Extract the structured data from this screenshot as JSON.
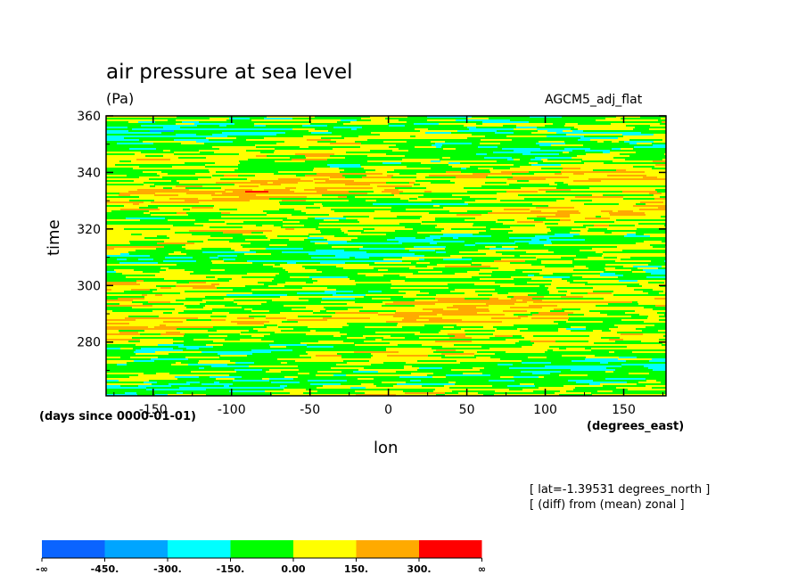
{
  "header": {
    "title": "air pressure at sea level",
    "units": "(Pa)",
    "model": "AGCM5_adj_flat"
  },
  "annotations": {
    "time_units": "(days since 0000-01-01)",
    "x_units": "(degrees_east)",
    "lat_note": "[ lat=-1.39531 degrees_north ]",
    "diff_note": "[ (diff) from (mean) zonal ]"
  },
  "chart_data": {
    "type": "heatmap",
    "title": "air pressure at sea level",
    "subtitle": "(Pa)",
    "xlabel": "lon",
    "ylabel": "time",
    "xlim": [
      -180,
      177
    ],
    "ylim": [
      261,
      360
    ],
    "x_ticks": [
      -150,
      -100,
      -50,
      0,
      50,
      100,
      150
    ],
    "x_tick_labels": [
      "-150",
      "-100",
      "-50",
      "0",
      "50",
      "100",
      "150"
    ],
    "y_ticks": [
      280,
      300,
      320,
      340,
      360
    ],
    "y_tick_labels": [
      "280",
      "300",
      "320",
      "340",
      "360"
    ],
    "x_units": "(degrees_east)",
    "time_units": "(days since 0000-01-01)",
    "grid": false,
    "legend_position": "bottom-left",
    "levels": [
      {
        "label": "-∞",
        "color": "#0a64ff"
      },
      {
        "label": "-450.",
        "color": "#00a5ff"
      },
      {
        "label": "-300.",
        "color": "#00ffff"
      },
      {
        "label": "-150.",
        "color": "#00ff00"
      },
      {
        "label": "0.00",
        "color": "#ffff00"
      },
      {
        "label": "150.",
        "color": "#ffaa00"
      },
      {
        "label": "300.",
        "color": "#ff0000"
      },
      {
        "label": "∞",
        "color": ""
      }
    ],
    "field_description_values": {
      "dominant_bins": [
        "-150. to 0.00",
        "0.00 to 150."
      ],
      "frequent_bins": [
        "150. to 300.",
        "-300. to -150."
      ],
      "rare_bins": [
        "300. to ∞"
      ]
    }
  }
}
